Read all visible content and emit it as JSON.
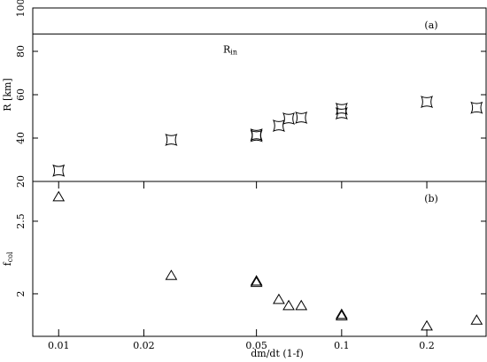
{
  "chart_data": [
    {
      "type": "scatter",
      "panel_label": "(a)",
      "ylabel": "R [km]",
      "xscale": "log",
      "marker": "square",
      "x": [
        0.01,
        0.025,
        0.05,
        0.05,
        0.06,
        0.065,
        0.072,
        0.1,
        0.1,
        0.2,
        0.3
      ],
      "series": [
        {
          "color": "#000000",
          "values": [
            25,
            39.2,
            41,
            41.6,
            45.7,
            49,
            49.4,
            51.4,
            53.5,
            56.7,
            54
          ]
        }
      ],
      "xlim": [
        0.0081,
        0.324
      ],
      "ylim": [
        20,
        100
      ],
      "yticks": [
        20,
        40,
        60,
        80,
        100
      ],
      "reference_line": {
        "value": 88,
        "label": "R",
        "label_sub": "in"
      }
    },
    {
      "type": "scatter",
      "panel_label": "(b)",
      "ylabel": "f",
      "ylabel_sub": "col",
      "xlabel": "dm/dt (1-f)",
      "xscale": "log",
      "marker": "triangle",
      "x": [
        0.01,
        0.025,
        0.05,
        0.05,
        0.06,
        0.065,
        0.072,
        0.1,
        0.1,
        0.2,
        0.3
      ],
      "series": [
        {
          "color": "#000000",
          "values": [
            2.67,
            2.128,
            2.09,
            2.08,
            1.963,
            1.92,
            1.92,
            1.86,
            1.85,
            1.78,
            1.82
          ]
        }
      ],
      "xlim": [
        0.0081,
        0.324
      ],
      "ylim": [
        1.707,
        2.774
      ],
      "yticks": [
        2,
        2.5
      ],
      "xticks": [
        0.01,
        0.02,
        0.05,
        0.1,
        0.2
      ]
    }
  ]
}
